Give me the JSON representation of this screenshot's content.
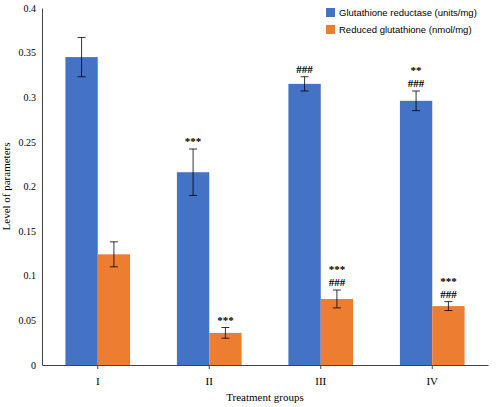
{
  "chart_data": {
    "type": "bar",
    "x_label": "Treatment groups",
    "y_label": "Level of parameters",
    "categories": [
      "I",
      "II",
      "III",
      "IV"
    ],
    "series": [
      {
        "name": "Glutathione reductase (units/mg)",
        "color": "#4472c4",
        "values": [
          0.345,
          0.216,
          0.315,
          0.296
        ],
        "errors": [
          0.022,
          0.026,
          0.008,
          0.011
        ],
        "annotations": [
          [],
          [
            "***"
          ],
          [
            "###"
          ],
          [
            "**",
            "###"
          ]
        ]
      },
      {
        "name": "Reduced glutathione (nmol/mg)",
        "color": "#ed7d31",
        "values": [
          0.124,
          0.036,
          0.074,
          0.066
        ],
        "errors": [
          0.014,
          0.006,
          0.01,
          0.005
        ],
        "annotations": [
          [],
          [
            "***"
          ],
          [
            "***",
            "###"
          ],
          [
            "***",
            "###"
          ]
        ]
      }
    ],
    "ylim": [
      0,
      0.4
    ],
    "yticks": [
      0,
      0.05,
      0.1,
      0.15,
      0.2,
      0.25,
      0.3,
      0.35,
      0.4
    ],
    "grid": false,
    "legend": "top-right"
  }
}
